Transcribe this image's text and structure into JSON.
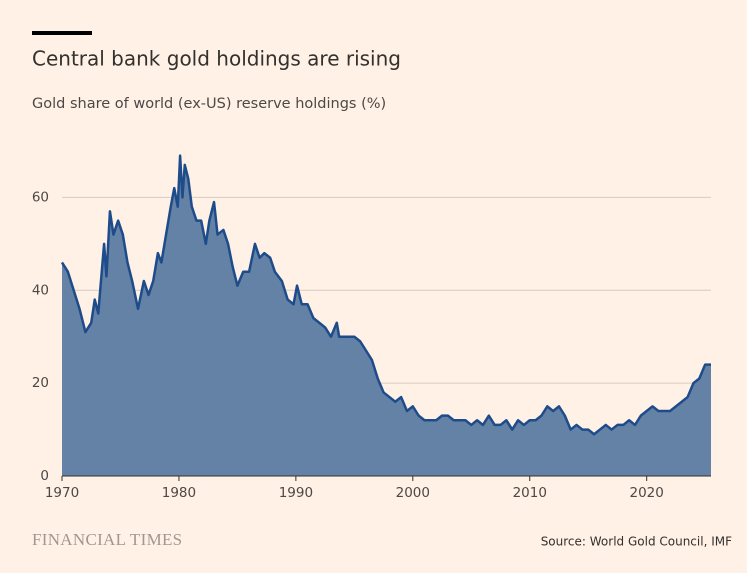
{
  "chart_data": {
    "type": "area",
    "title": "Central bank gold holdings are rising",
    "subtitle": "Gold share of world (ex-US) reserve holdings (%)",
    "source": "Source: World Gold Council, IMF",
    "brand": "FINANCIAL TIMES",
    "color": "#1e4c8a",
    "fill": "#6382a6",
    "grid": true,
    "xlim": [
      1970,
      2025.5
    ],
    "xticks": [
      1970,
      1980,
      1990,
      2000,
      2010,
      2020
    ],
    "ylim": [
      0,
      70
    ],
    "yticks": [
      0,
      20,
      40,
      60
    ],
    "x": [
      1970,
      1970.5,
      1971,
      1971.5,
      1972,
      1972.5,
      1972.8,
      1973.1,
      1973.4,
      1973.6,
      1973.8,
      1974.1,
      1974.4,
      1974.8,
      1975.2,
      1975.6,
      1976,
      1976.5,
      1977,
      1977.4,
      1977.8,
      1978.2,
      1978.5,
      1978.9,
      1979.3,
      1979.6,
      1979.9,
      1980.1,
      1980.3,
      1980.5,
      1980.8,
      1981.1,
      1981.5,
      1981.9,
      1982.3,
      1982.6,
      1983,
      1983.3,
      1983.8,
      1984.2,
      1984.6,
      1985,
      1985.5,
      1986,
      1986.5,
      1986.9,
      1987.3,
      1987.8,
      1988.2,
      1988.8,
      1989.3,
      1989.8,
      1990.1,
      1990.5,
      1991,
      1991.5,
      1992,
      1992.5,
      1993,
      1993.5,
      1993.7,
      1994.2,
      1995,
      1995.5,
      1996,
      1996.5,
      1997,
      1997.5,
      1998,
      1998.5,
      1999,
      1999.5,
      2000,
      2000.5,
      2001,
      2002,
      2002.5,
      2003,
      2003.5,
      2004,
      2004.5,
      2005,
      2005.5,
      2006,
      2006.5,
      2007,
      2007.5,
      2008,
      2008.5,
      2009,
      2009.5,
      2010,
      2010.5,
      2011,
      2011.5,
      2012,
      2012.5,
      2013,
      2013.5,
      2014,
      2014.5,
      2015,
      2015.5,
      2016,
      2016.5,
      2017,
      2017.5,
      2018,
      2018.5,
      2019,
      2019.5,
      2020,
      2020.5,
      2021,
      2021.5,
      2022,
      2022.5,
      2023,
      2023.5,
      2024,
      2024.5,
      2025,
      2025.5
    ],
    "values": [
      46,
      44,
      40,
      36,
      31,
      33,
      38,
      35,
      44,
      50,
      43,
      57,
      52,
      55,
      52,
      46,
      42,
      36,
      42,
      39,
      42,
      48,
      46,
      52,
      58,
      62,
      58,
      69,
      60,
      67,
      64,
      58,
      55,
      55,
      50,
      55,
      59,
      52,
      53,
      50,
      45,
      41,
      44,
      44,
      50,
      47,
      48,
      47,
      44,
      42,
      38,
      37,
      41,
      37,
      37,
      34,
      33,
      32,
      30,
      33,
      30,
      30,
      30,
      29,
      27,
      25,
      21,
      18,
      17,
      16,
      17,
      14,
      15,
      13,
      12,
      12,
      13,
      13,
      12,
      12,
      12,
      11,
      12,
      11,
      13,
      11,
      11,
      12,
      10,
      12,
      11,
      12,
      12,
      13,
      15,
      14,
      15,
      13,
      10,
      11,
      10,
      10,
      9,
      10,
      11,
      10,
      11,
      11,
      12,
      11,
      13,
      14,
      15,
      14,
      14,
      14,
      15,
      16,
      17,
      20,
      21,
      24,
      24
    ]
  }
}
